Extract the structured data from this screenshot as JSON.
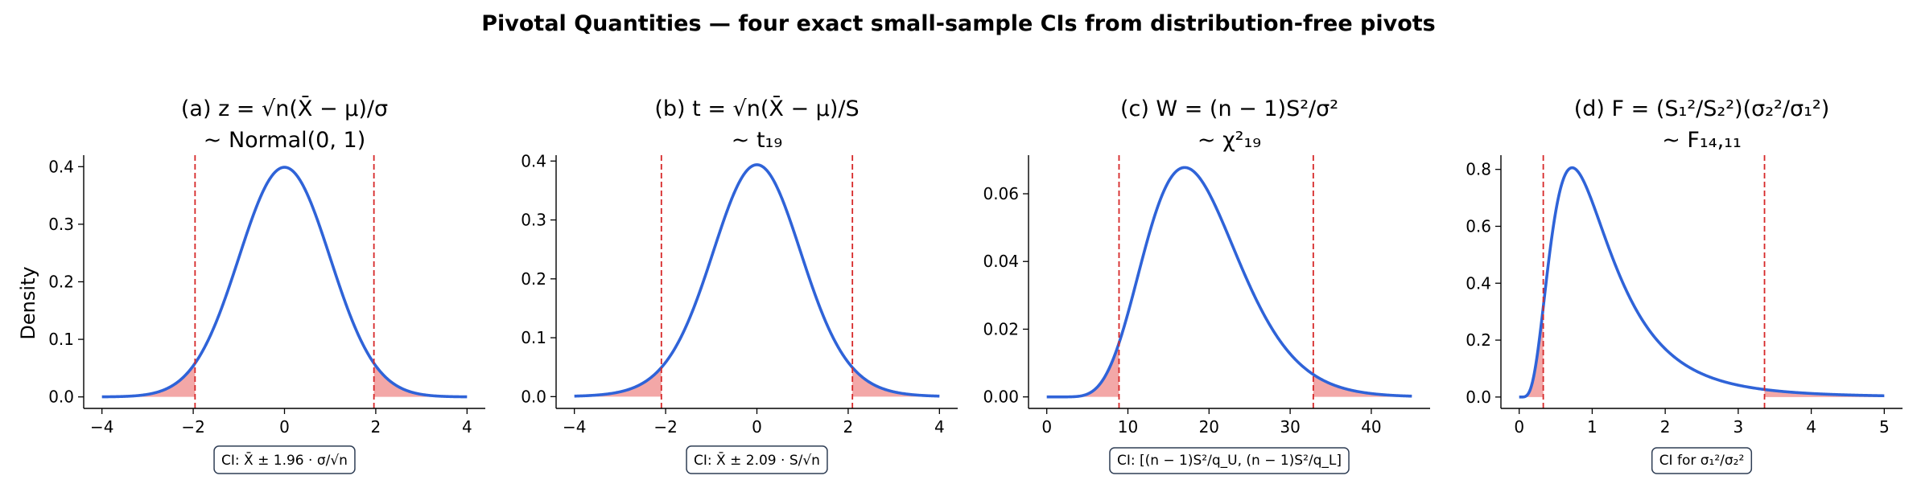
{
  "figure": {
    "suptitle": "Pivotal Quantities — four exact small-sample CIs from distribution-free pivots",
    "ylabel": "Density"
  },
  "colors": {
    "curve": "#2f63d8",
    "crit_line": "#d62728",
    "tail_fill": "#ef8a8a",
    "caption_border": "#2f3e55"
  },
  "chart_data": [
    {
      "type": "line",
      "panel": "a",
      "title_line1": "(a) z = √n(X̄ − μ)/σ",
      "title_line2": "~ Normal(0, 1)",
      "distribution": "normal",
      "xlim": [
        -4.4,
        4.4
      ],
      "ylim": [
        -0.02,
        0.42
      ],
      "xticks": [
        -4,
        -2,
        0,
        2,
        4
      ],
      "yticks": [
        0.0,
        0.1,
        0.2,
        0.3,
        0.4
      ],
      "ytick_labels": [
        "0.0",
        "0.1",
        "0.2",
        "0.3",
        "0.4"
      ],
      "x_range": [
        -4,
        4
      ],
      "critical_values": [
        -1.96,
        1.96
      ],
      "caption": "CI: X̄ ± 1.96 · σ/√n"
    },
    {
      "type": "line",
      "panel": "b",
      "title_line1": "(b) t = √n(X̄ − μ)/S",
      "title_line2": "~ t₁₉",
      "distribution": "t",
      "df": 19,
      "xlim": [
        -4.4,
        4.4
      ],
      "ylim": [
        -0.02,
        0.41
      ],
      "xticks": [
        -4,
        -2,
        0,
        2,
        4
      ],
      "yticks": [
        0.0,
        0.1,
        0.2,
        0.3,
        0.4
      ],
      "ytick_labels": [
        "0.0",
        "0.1",
        "0.2",
        "0.3",
        "0.4"
      ],
      "x_range": [
        -4,
        4
      ],
      "critical_values": [
        -2.093,
        2.093
      ],
      "caption": "CI: X̄ ± 2.09 · S/√n"
    },
    {
      "type": "line",
      "panel": "c",
      "title_line1": "(c) W = (n − 1)S²/σ²",
      "title_line2": "~ χ²₁₉",
      "distribution": "chi2",
      "df": 19,
      "xlim": [
        -2.25,
        47.25
      ],
      "ylim": [
        -0.0034,
        0.0714
      ],
      "xticks": [
        0,
        10,
        20,
        30,
        40
      ],
      "yticks": [
        0.0,
        0.02,
        0.04,
        0.06
      ],
      "ytick_labels": [
        "0.00",
        "0.02",
        "0.04",
        "0.06"
      ],
      "x_range": [
        0,
        45
      ],
      "critical_values": [
        8.907,
        32.852
      ],
      "caption": "CI: [(n − 1)S²/q_U, (n − 1)S²/q_L]"
    },
    {
      "type": "line",
      "panel": "d",
      "title_line1": "(d) F = (S₁²/S₂²)(σ₂²/σ₁²)",
      "title_line2": "~ F₁₄,₁₁",
      "distribution": "F",
      "df": [
        14,
        11
      ],
      "xlim": [
        -0.25,
        5.25
      ],
      "ylim": [
        -0.04,
        0.85
      ],
      "xticks": [
        0,
        1,
        2,
        3,
        4,
        5
      ],
      "yticks": [
        0.0,
        0.2,
        0.4,
        0.6,
        0.8
      ],
      "ytick_labels": [
        "0.0",
        "0.2",
        "0.4",
        "0.6",
        "0.8"
      ],
      "x_range": [
        0,
        5
      ],
      "critical_values": [
        0.33,
        3.36
      ],
      "caption": "CI for σ₁²/σ₂²"
    }
  ]
}
